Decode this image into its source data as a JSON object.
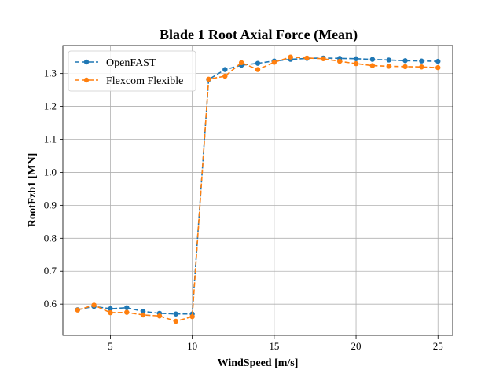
{
  "chart_data": {
    "type": "line",
    "title": "Blade 1 Root Axial Force (Mean)",
    "xlabel": "WindSpeed [m/s]",
    "ylabel": "RootFzb1 [MN]",
    "xlim": [
      2.1,
      25.9
    ],
    "ylim": [
      0.505,
      1.385
    ],
    "xticks": [
      5,
      10,
      15,
      20,
      25
    ],
    "yticks": [
      0.6,
      0.7,
      0.8,
      0.9,
      1.0,
      1.1,
      1.2,
      1.3
    ],
    "xtick_labels": [
      "5",
      "10",
      "15",
      "20",
      "25"
    ],
    "ytick_labels": [
      "0.6",
      "0.7",
      "0.8",
      "0.9",
      "1.0",
      "1.1",
      "1.2",
      "1.3"
    ],
    "grid": true,
    "legend_position": "top-left",
    "x": [
      3,
      4,
      5,
      6,
      7,
      8,
      9,
      10,
      11,
      12,
      13,
      14,
      15,
      16,
      17,
      18,
      19,
      20,
      21,
      22,
      23,
      24,
      25
    ],
    "series": [
      {
        "name": "OpenFAST",
        "color": "#1f77b4",
        "marker": "circle",
        "linestyle": "dashed",
        "values": [
          0.583,
          0.593,
          0.586,
          0.589,
          0.578,
          0.572,
          0.57,
          0.57,
          1.282,
          1.312,
          1.325,
          1.331,
          1.338,
          1.343,
          1.346,
          1.347,
          1.346,
          1.345,
          1.343,
          1.341,
          1.339,
          1.338,
          1.337
        ]
      },
      {
        "name": "Flexcom Flexible",
        "color": "#ff7f0e",
        "marker": "circle",
        "linestyle": "dashed",
        "values": [
          0.582,
          0.597,
          0.574,
          0.575,
          0.567,
          0.564,
          0.548,
          0.562,
          1.283,
          1.292,
          1.333,
          1.312,
          1.334,
          1.35,
          1.347,
          1.345,
          1.337,
          1.33,
          1.324,
          1.322,
          1.321,
          1.32,
          1.318
        ]
      }
    ]
  }
}
